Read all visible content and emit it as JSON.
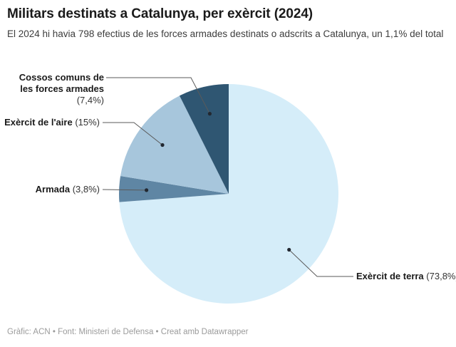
{
  "chart_data": {
    "type": "pie",
    "title": "Militars destinats a Catalunya, per exèrcit (2024)",
    "subtitle": "El 2024 hi havia 798 efectius de les forces armades destinats o adscrits a Catalunya, un 1,1% del total",
    "direction": "clockwise",
    "start_angle": "top (12 o'clock)",
    "legend_position": "direct labels with leader lines",
    "slices": [
      {
        "label": "Exèrcit de terra",
        "value": 73.8,
        "value_label": "(73,8%)",
        "color": "#d5edf9"
      },
      {
        "label": "Armada",
        "value": 3.8,
        "value_label": "(3,8%)",
        "color": "#5f86a4"
      },
      {
        "label": "Exèrcit de l'aire",
        "value": 15,
        "value_label": "(15%)",
        "color": "#a7c6dc"
      },
      {
        "label": "Cossos comuns de les forces armades",
        "value": 7.4,
        "value_label": "(7,4%)",
        "color": "#2f5672"
      }
    ]
  },
  "footer": {
    "byline": "Gràfic: ACN • Font: Ministeri de Defensa • Creat amb Datawrapper"
  },
  "colors": {
    "background": "#ffffff",
    "leader_line": "#5a5a5a",
    "leader_dot": "#222831"
  }
}
